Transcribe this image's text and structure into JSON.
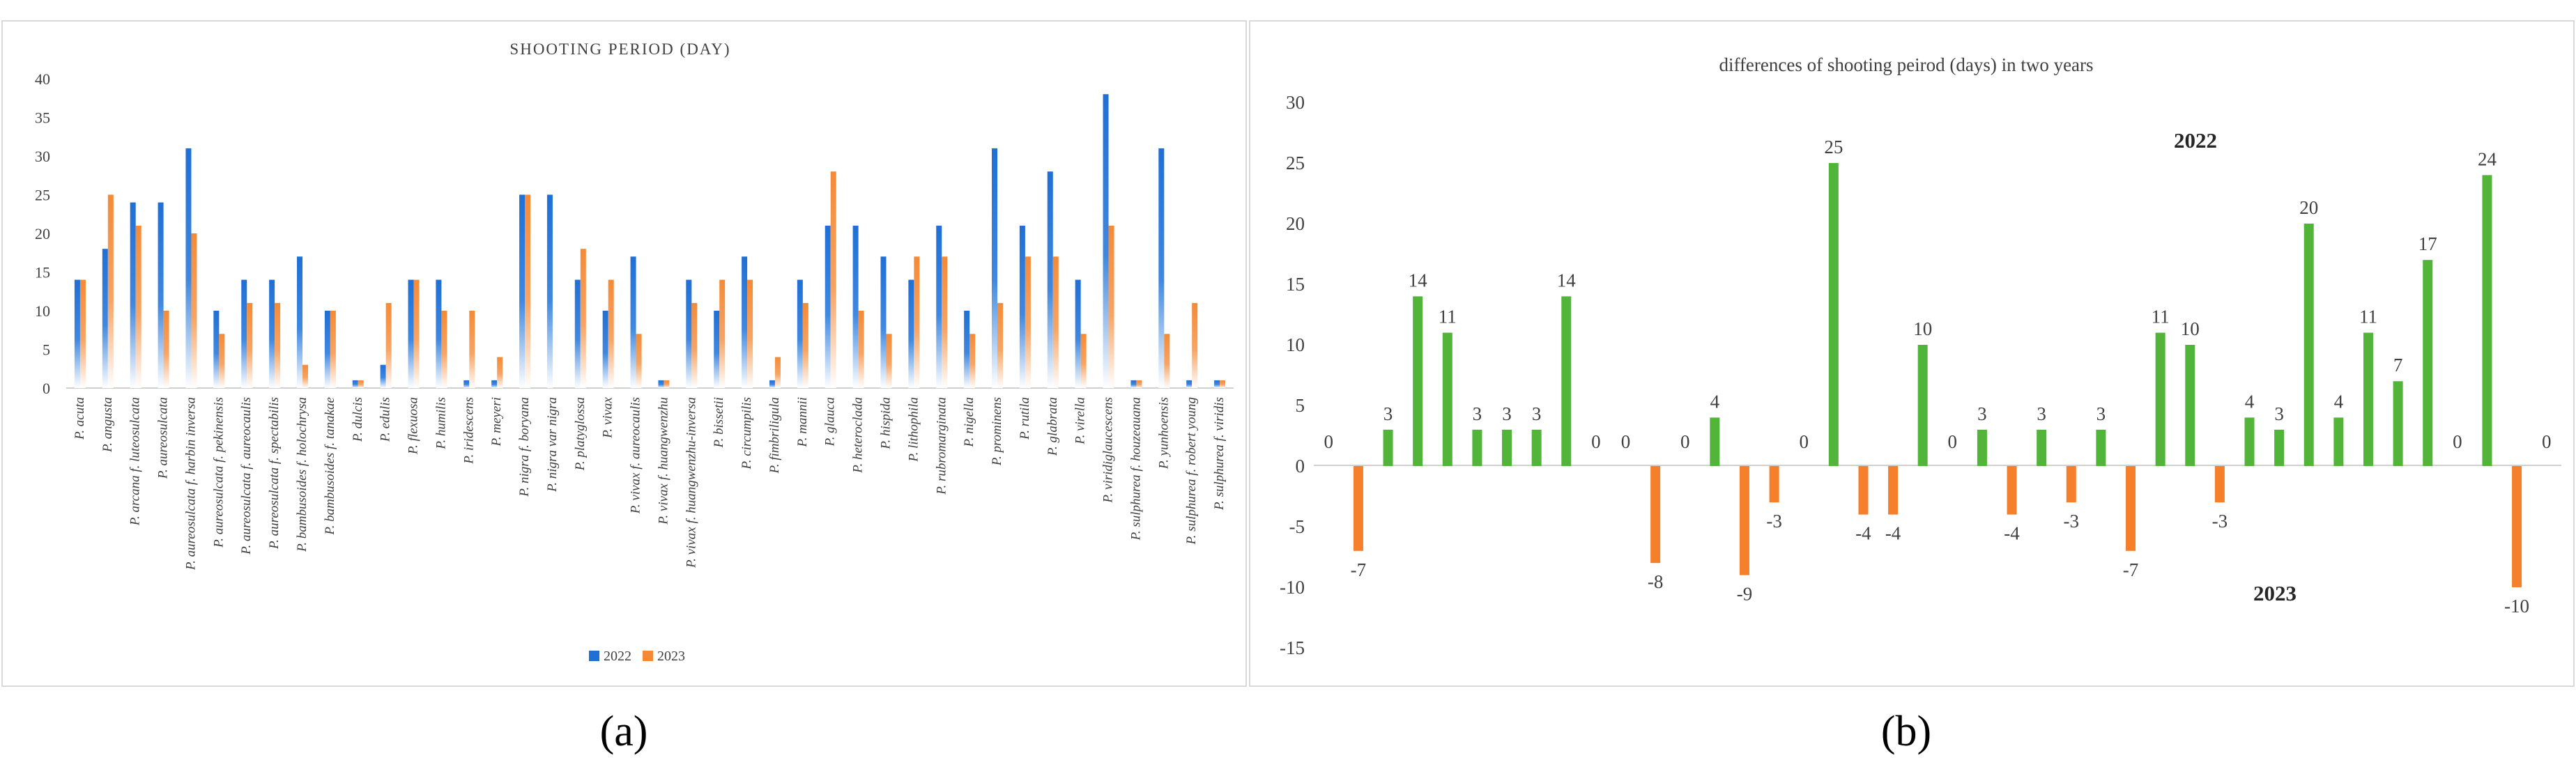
{
  "chart_data": [
    {
      "type": "bar",
      "title": "SHOOTING PERIOD (DAY)",
      "panel_label": "(a)",
      "categories": [
        "P. acuta",
        "P. angusta",
        "P. arcana f. luteosulcata",
        "P. aureosulcata",
        "P. aureosulcata f. harbin inversa",
        "P. aureosulcata f. pekinensis",
        "P. aureosulcata f. aureocaulis",
        "P. aureosulcata f. spectabilis",
        "P. bambusoides f. holochrysa",
        "P. bambusoides f. tanakae",
        "P. dulcis",
        "P. edulis",
        "P. flexuosa",
        "P. humilis",
        "P. iridescens",
        "P. meyeri",
        "P. nigra f. boryana",
        "P. nigra var nigra",
        "P. platyglossa",
        "P. vivax",
        "P. vivax f. aureocaulis",
        "P. vivax f. huangwenzhu",
        "P. vivax f. huangwenzhu-inversa",
        "P. bissetii",
        "P. circumpilis",
        "P. fimbriligula",
        "P. mannii",
        "P. glauca",
        "P. heteroclada",
        "P. hispida",
        "P. lithophila",
        "P. rubromarginata",
        "P. nigella",
        "P. prominens",
        "P. rutila",
        "P. glabrata",
        "P. virella",
        "P. viridiglaucescens",
        "P. sulphurea f. houzeauana",
        "P. yunhoensis",
        "P. sulphurea f. robert young",
        "P. sulphurea f. viridis"
      ],
      "series": [
        {
          "name": "2022",
          "color": "#1f6fd6",
          "values": [
            14,
            18,
            24,
            24,
            31,
            10,
            14,
            14,
            17,
            10,
            1,
            3,
            14,
            14,
            1,
            1,
            25,
            25,
            14,
            10,
            17,
            1,
            14,
            10,
            17,
            1,
            14,
            21,
            21,
            17,
            14,
            21,
            10,
            31,
            21,
            28,
            14,
            38,
            1,
            31,
            1,
            1
          ]
        },
        {
          "name": "2023",
          "color": "#f58a36",
          "values": [
            14,
            25,
            21,
            10,
            20,
            7,
            11,
            11,
            3,
            10,
            1,
            11,
            14,
            10,
            10,
            4,
            25,
            0,
            18,
            14,
            7,
            1,
            11,
            14,
            14,
            4,
            11,
            28,
            10,
            7,
            17,
            17,
            7,
            11,
            17,
            17,
            7,
            21,
            1,
            7,
            11,
            1
          ]
        }
      ],
      "yticks": [
        "0",
        "5",
        "10",
        "15",
        "20",
        "25",
        "30",
        "35",
        "40"
      ],
      "ylim": [
        0,
        40
      ],
      "legend": "bottom-right"
    },
    {
      "type": "bar",
      "title": "differences of shooting peirod (days) in two years",
      "panel_label": "(b)",
      "values": [
        0,
        -7,
        3,
        14,
        11,
        3,
        3,
        3,
        14,
        0,
        0,
        -8,
        0,
        4,
        -9,
        -3,
        0,
        25,
        -4,
        -4,
        10,
        0,
        3,
        -4,
        3,
        -3,
        3,
        -7,
        11,
        10,
        -3,
        4,
        3,
        20,
        4,
        11,
        7,
        17,
        0,
        24,
        -10,
        0
      ],
      "labels": [
        "0",
        "-7",
        "3",
        "14",
        "11",
        "3",
        "3",
        "3",
        "14",
        "0",
        "0",
        "-8",
        "0",
        "4",
        "-9",
        "-3",
        "0",
        "25",
        "-4",
        "-4",
        "10",
        "0",
        "3",
        "-4",
        "3",
        "-3",
        "3",
        "-7",
        "11",
        "10",
        "-3",
        "4",
        "3",
        "20",
        "4",
        "11",
        "7",
        "17",
        "0",
        "24",
        "-10",
        "0"
      ],
      "positive_color": "#53b43a",
      "negative_color": "#f57f2a",
      "yticks": [
        "30",
        "25",
        "20",
        "15",
        "10",
        "5",
        "0",
        "-5",
        "-10",
        "-15"
      ],
      "ylim": [
        -15,
        30
      ],
      "annotations": [
        "2022",
        "2023"
      ]
    }
  ]
}
